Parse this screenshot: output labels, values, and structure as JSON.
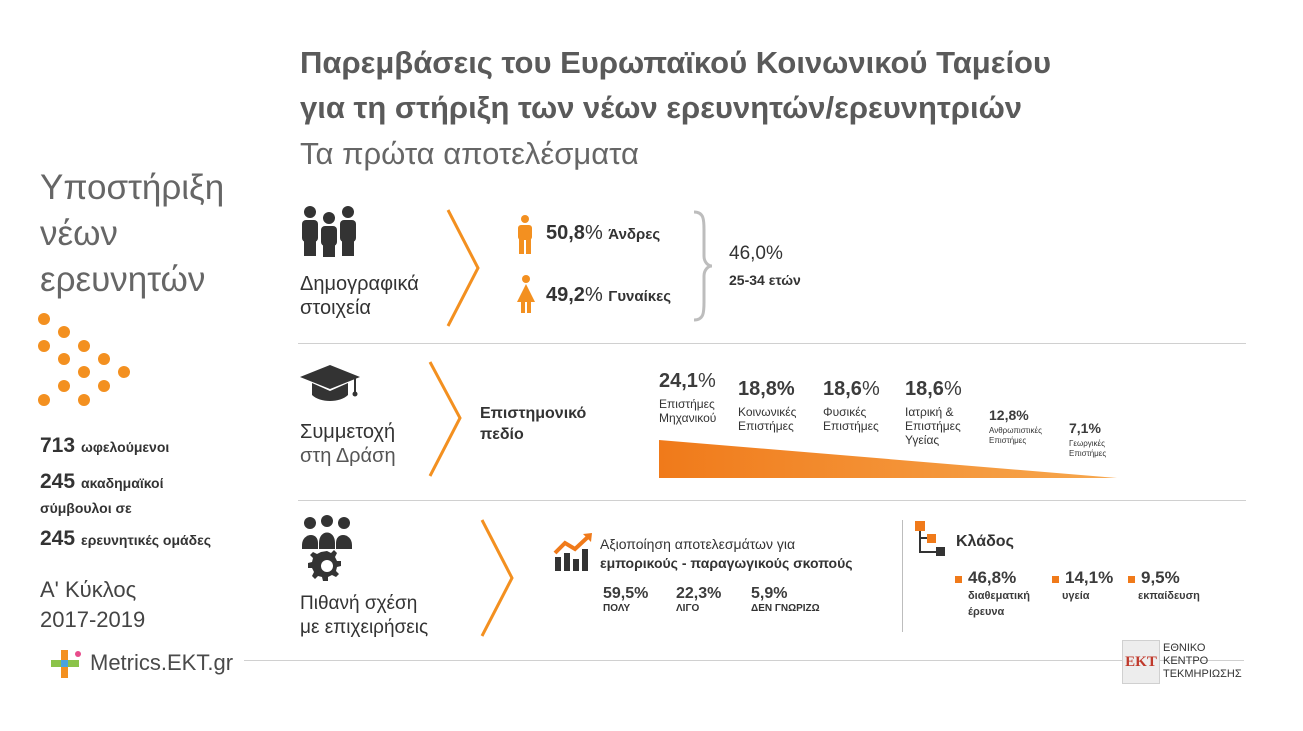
{
  "header": {
    "title_line1": "Παρεμβάσεις του Ευρωπαϊκού Κοινωνικού Ταμείου",
    "title_line2": "για τη στήριξη των νέων ερευνητών/ερευνητριών",
    "subtitle": "Τα πρώτα αποτελέσματα"
  },
  "sidebar": {
    "title_lines": [
      "Υποστήριξη",
      "νέων",
      "ερευνητών"
    ],
    "stats": [
      {
        "num": "713",
        "text": "ωφελούμενοι"
      },
      {
        "num": "245",
        "text": "ακαδημαϊκοί"
      },
      {
        "num": "",
        "text": "σύμβουλοι σε"
      },
      {
        "num": "245",
        "text": "ερευνητικές ομάδες"
      }
    ],
    "cycle_line1": "Α' Κύκλος",
    "cycle_line2": "2017-2019",
    "logo_text": "Metrics.EKT.gr"
  },
  "demographics": {
    "label_line1": "Δημογραφικά",
    "label_line2": "στοιχεία",
    "men_pct": "50,8",
    "men_label": "Άνδρες",
    "women_pct": "49,2",
    "women_label": "Γυναίκες",
    "age_pct": "46,0%",
    "age_label": "25-34 ετών",
    "pct_sign": "%"
  },
  "participation": {
    "label_line1": "Συμμετοχή",
    "label_line2": "στη Δράση",
    "field_line1": "Επιστημονικό",
    "field_line2": "πεδίο",
    "fields": [
      {
        "pct": "24,1",
        "label_line1": "Επιστήμες",
        "label_line2": "Μηχανικού",
        "label_line3": ""
      },
      {
        "pct": "18,8%",
        "label_line1": "Κοινωνικές",
        "label_line2": "Επιστήμες",
        "label_line3": ""
      },
      {
        "pct": "18,6",
        "label_line1": "Φυσικές",
        "label_line2": "Επιστήμες",
        "label_line3": ""
      },
      {
        "pct": "18,6",
        "label_line1": "Ιατρική &",
        "label_line2": "Επιστήμες",
        "label_line3": "Υγείας"
      },
      {
        "pct": "12,8%",
        "label_line1": "Ανθρωπιστικές",
        "label_line2": "Επιστήμες",
        "label_line3": ""
      },
      {
        "pct": "7,1%",
        "label_line1": "Γεωργικές",
        "label_line2": "Επιστήμες",
        "label_line3": ""
      }
    ]
  },
  "business": {
    "label_line1": "Πιθανή σχέση",
    "label_line2": "με επιχειρήσεις",
    "util_line1": "Αξιοποίηση αποτελεσμάτων για",
    "util_line2": "εμπορικούς - παραγωγικούς σκοπούς",
    "answers": [
      {
        "pct": "59,5%",
        "label": "ΠΟΛΥ"
      },
      {
        "pct": "22,3%",
        "label": "ΛΙΓΟ"
      },
      {
        "pct": "5,9%",
        "label": "ΔΕΝ ΓΝΩΡΙΖΩ"
      }
    ],
    "sector_title": "Κλάδος",
    "sectors": [
      {
        "pct": "46,8%",
        "label_line1": "διαθεματική",
        "label_line2": "έρευνα"
      },
      {
        "pct": "14,1%",
        "label_line1": "υγεία",
        "label_line2": ""
      },
      {
        "pct": "9,5%",
        "label_line1": "εκπαίδευση",
        "label_line2": ""
      }
    ]
  },
  "footer": {
    "ekt_mark": "ΕΚΤ",
    "ekt_line1": "ΕΘΝΙΚΟ",
    "ekt_line2": "ΚΕΝΤΡΟ",
    "ekt_line3": "ΤΕΚΜΗΡΙΩΣΗΣ"
  },
  "colors": {
    "accent": "#f39020",
    "text": "#3c3c3c",
    "muted": "#666666"
  }
}
